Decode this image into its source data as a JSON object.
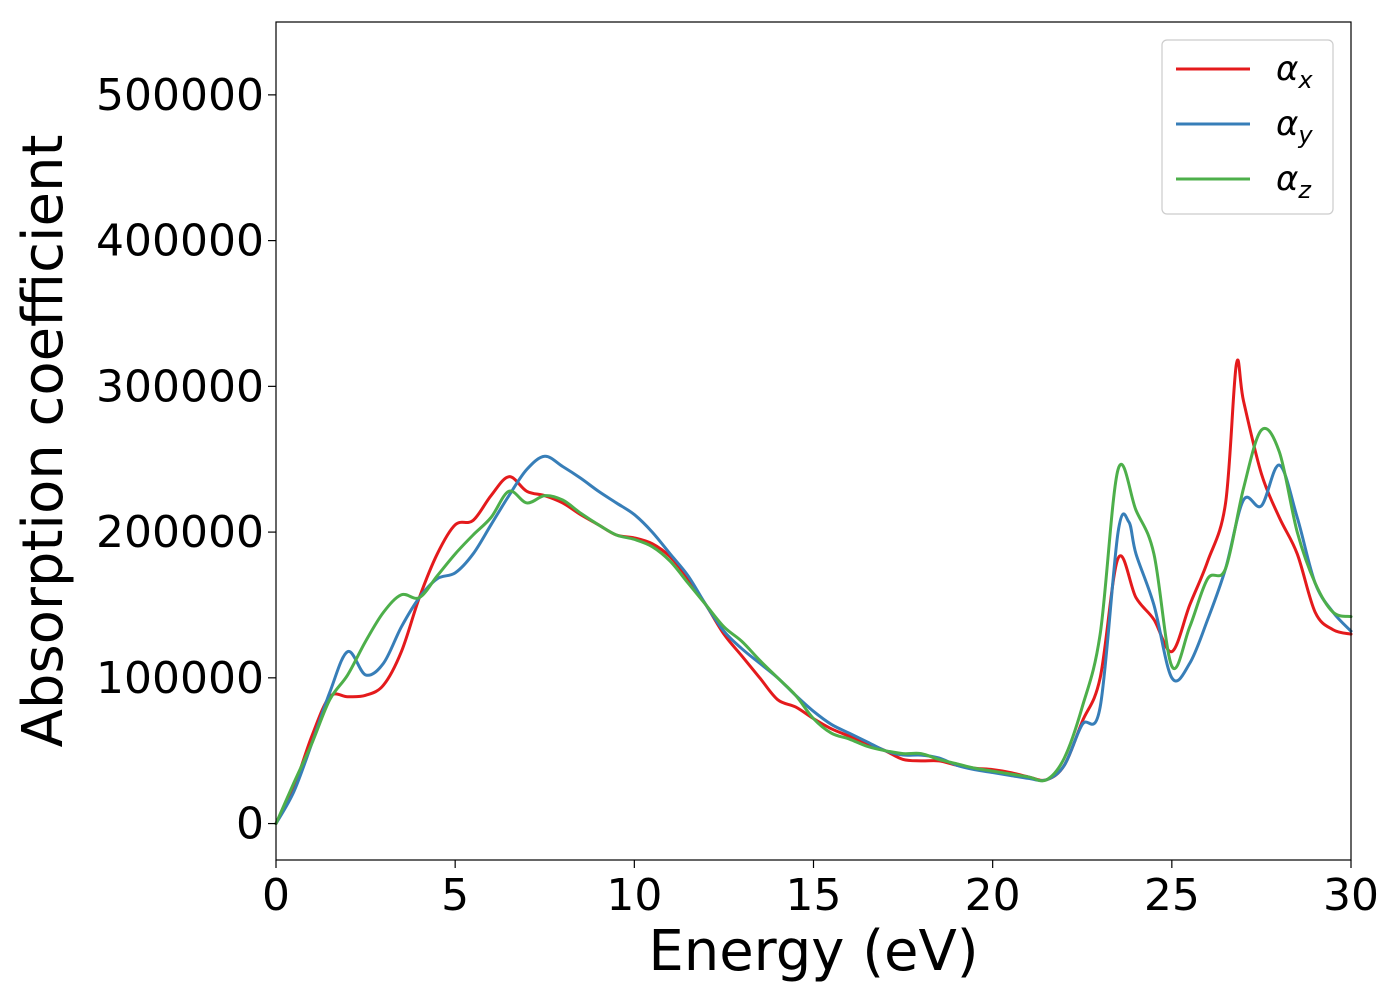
{
  "chart_data": {
    "type": "line",
    "title": "",
    "xlabel": "Energy (eV)",
    "ylabel": "Absorption coefficient",
    "xlim": [
      0,
      30
    ],
    "ylim": [
      -25000,
      550000
    ],
    "xticks": [
      0,
      5,
      10,
      15,
      20,
      25,
      30
    ],
    "xtick_labels": [
      "0",
      "5",
      "10",
      "15",
      "20",
      "25",
      "30"
    ],
    "yticks": [
      0,
      100000,
      200000,
      300000,
      400000,
      500000
    ],
    "ytick_labels": [
      "0",
      "100000",
      "200000",
      "300000",
      "400000",
      "500000"
    ],
    "grid": false,
    "legend_position": "top-right",
    "series": [
      {
        "name": "α_x",
        "legend_symbol": "α",
        "legend_sub": "x",
        "color": "#e41a1c",
        "x": [
          0,
          0.5,
          1,
          1.5,
          2,
          2.5,
          3,
          3.5,
          4,
          4.5,
          5,
          5.5,
          6,
          6.5,
          7,
          7.5,
          8,
          8.5,
          9,
          9.5,
          10,
          10.5,
          11,
          11.5,
          12,
          12.5,
          13,
          13.5,
          14,
          14.5,
          15,
          15.5,
          16,
          16.5,
          17,
          17.5,
          18,
          18.5,
          19,
          19.5,
          20,
          20.5,
          21,
          21.5,
          22,
          22.5,
          23,
          23.5,
          24,
          24.5,
          25,
          25.5,
          26,
          26.5,
          26.8,
          27,
          27.5,
          28,
          28.5,
          29,
          29.5,
          30
        ],
        "y": [
          0,
          25000,
          60000,
          87000,
          87000,
          88000,
          95000,
          118000,
          155000,
          185000,
          205000,
          208000,
          225000,
          238000,
          228000,
          225000,
          220000,
          212000,
          205000,
          198000,
          196000,
          192000,
          183000,
          168000,
          150000,
          130000,
          115000,
          100000,
          85000,
          80000,
          72000,
          65000,
          60000,
          55000,
          50000,
          44000,
          43000,
          43000,
          40000,
          38000,
          37000,
          35000,
          32000,
          30000,
          40000,
          70000,
          100000,
          182000,
          155000,
          140000,
          118000,
          150000,
          180000,
          220000,
          315000,
          290000,
          240000,
          210000,
          185000,
          145000,
          133000,
          130000
        ]
      },
      {
        "name": "α_y",
        "legend_symbol": "α",
        "legend_sub": "y",
        "color": "#377eb8",
        "x": [
          0,
          0.5,
          1,
          1.5,
          2,
          2.5,
          3,
          3.5,
          4,
          4.5,
          5,
          5.5,
          6,
          6.5,
          7,
          7.5,
          8,
          8.5,
          9,
          9.5,
          10,
          10.5,
          11,
          11.5,
          12,
          12.5,
          13,
          13.5,
          14,
          14.5,
          15,
          15.5,
          16,
          16.5,
          17,
          17.5,
          18,
          18.5,
          19,
          19.5,
          20,
          20.5,
          21,
          21.5,
          22,
          22.5,
          23,
          23.5,
          23.8,
          24,
          24.5,
          25,
          25.5,
          26,
          26.5,
          27,
          27.5,
          28,
          28.5,
          29,
          29.5,
          30
        ],
        "y": [
          0,
          22000,
          55000,
          90000,
          118000,
          102000,
          110000,
          135000,
          155000,
          168000,
          172000,
          185000,
          205000,
          225000,
          243000,
          252000,
          245000,
          237000,
          228000,
          220000,
          212000,
          200000,
          185000,
          170000,
          150000,
          132000,
          120000,
          110000,
          100000,
          88000,
          77000,
          68000,
          62000,
          56000,
          50000,
          47000,
          47000,
          45000,
          40000,
          37000,
          35000,
          33000,
          31000,
          30000,
          40000,
          68000,
          80000,
          200000,
          207000,
          185000,
          150000,
          100000,
          110000,
          140000,
          175000,
          222000,
          218000,
          246000,
          210000,
          165000,
          145000,
          132000
        ]
      },
      {
        "name": "α_z",
        "legend_symbol": "α",
        "legend_sub": "z",
        "color": "#4daf4a",
        "x": [
          0,
          0.5,
          1,
          1.5,
          2,
          2.5,
          3,
          3.5,
          4,
          4.5,
          5,
          5.5,
          6,
          6.5,
          7,
          7.5,
          8,
          8.5,
          9,
          9.5,
          10,
          10.5,
          11,
          11.5,
          12,
          12.5,
          13,
          13.5,
          14,
          14.5,
          15,
          15.5,
          16,
          16.5,
          17,
          17.5,
          18,
          18.5,
          19,
          19.5,
          20,
          20.5,
          21,
          21.5,
          22,
          22.5,
          23,
          23.5,
          24,
          24.5,
          25,
          25.5,
          26,
          26.5,
          27,
          27.5,
          28,
          28.5,
          29,
          29.5,
          30
        ],
        "y": [
          0,
          28000,
          55000,
          85000,
          102000,
          125000,
          145000,
          157000,
          155000,
          170000,
          185000,
          198000,
          210000,
          228000,
          220000,
          225000,
          222000,
          213000,
          205000,
          198000,
          195000,
          190000,
          180000,
          165000,
          150000,
          135000,
          125000,
          112000,
          100000,
          88000,
          72000,
          62000,
          58000,
          53000,
          50000,
          48000,
          48000,
          44000,
          41000,
          38000,
          36000,
          34000,
          32000,
          30000,
          45000,
          80000,
          130000,
          243000,
          215000,
          185000,
          108000,
          135000,
          168000,
          175000,
          230000,
          270000,
          255000,
          200000,
          165000,
          145000,
          142000
        ]
      }
    ]
  }
}
